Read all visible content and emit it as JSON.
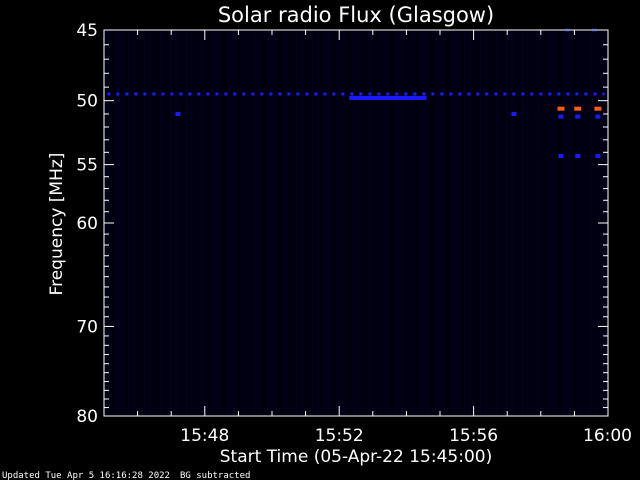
{
  "chart_data": {
    "type": "heatmap",
    "title": "Solar radio Flux (Glasgow)",
    "xlabel": "Start Time (05-Apr-22 15:45:00)",
    "ylabel": "Frequency [MHz]",
    "x_ticks": [
      "15:48",
      "15:52",
      "15:56",
      "16:00"
    ],
    "x_tick_minutes": [
      3,
      7,
      11,
      15
    ],
    "xlim_minutes": [
      0,
      15
    ],
    "y_ticks": [
      45,
      50,
      55,
      60,
      70,
      80
    ],
    "ylim": [
      45,
      80
    ],
    "y_scale": "log",
    "grid": false,
    "colors": {
      "background": "#000000",
      "axis": "#ffffff",
      "low": "#0a0a60",
      "mid": "#1a1aff",
      "high": "#ff5a1a"
    },
    "features": [
      {
        "kind": "band",
        "freq": 49.5,
        "t_start": 0.1,
        "t_end": 14.9,
        "intensity": "mid",
        "dashed": true
      },
      {
        "kind": "band",
        "freq": 49.8,
        "t_start": 7.3,
        "t_end": 9.6,
        "intensity": "mid",
        "dashed": false
      },
      {
        "kind": "spot",
        "freq": 51.0,
        "t": 2.2,
        "intensity": "mid"
      },
      {
        "kind": "spot",
        "freq": 51.0,
        "t": 12.2,
        "intensity": "mid"
      },
      {
        "kind": "spot",
        "freq": 50.6,
        "t": 13.6,
        "intensity": "high"
      },
      {
        "kind": "spot",
        "freq": 50.6,
        "t": 14.1,
        "intensity": "high"
      },
      {
        "kind": "spot",
        "freq": 50.6,
        "t": 14.7,
        "intensity": "high"
      },
      {
        "kind": "spot",
        "freq": 51.2,
        "t": 13.6,
        "intensity": "mid"
      },
      {
        "kind": "spot",
        "freq": 51.2,
        "t": 14.1,
        "intensity": "mid"
      },
      {
        "kind": "spot",
        "freq": 51.2,
        "t": 14.7,
        "intensity": "mid"
      },
      {
        "kind": "spot",
        "freq": 54.3,
        "t": 13.6,
        "intensity": "mid"
      },
      {
        "kind": "spot",
        "freq": 54.3,
        "t": 14.1,
        "intensity": "mid"
      },
      {
        "kind": "spot",
        "freq": 54.3,
        "t": 14.7,
        "intensity": "mid"
      },
      {
        "kind": "spot",
        "freq": 45.0,
        "t": 13.8,
        "intensity": "low"
      },
      {
        "kind": "spot",
        "freq": 45.0,
        "t": 14.6,
        "intensity": "low"
      }
    ]
  },
  "footer": {
    "updated": "Updated Tue Apr  5 16:16:28 2022",
    "bg_note": "BG subtracted"
  }
}
